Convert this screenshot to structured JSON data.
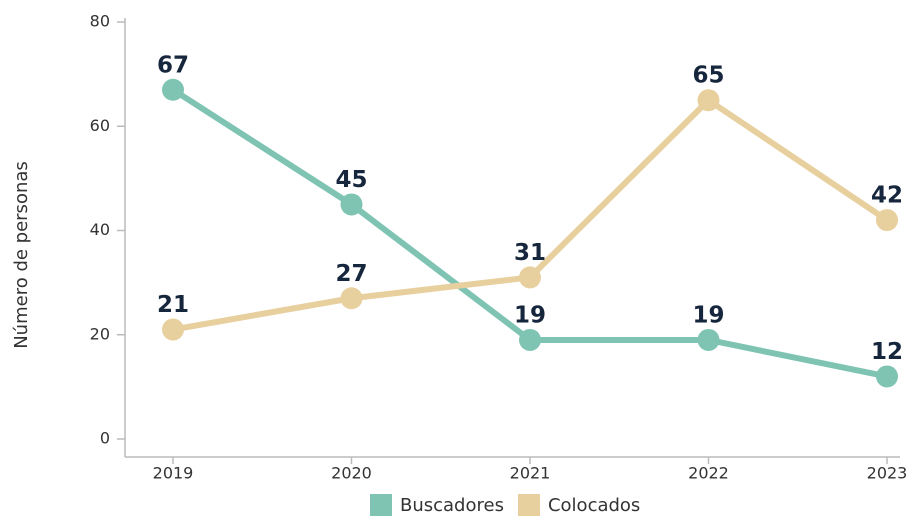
{
  "chart_data": {
    "type": "line",
    "y_label": "Número de personas",
    "categories": [
      "2019",
      "2020",
      "2021",
      "2022",
      "2023"
    ],
    "series": [
      {
        "name": "Buscadores",
        "color": "#7fc4b3",
        "values": [
          67,
          45,
          19,
          19,
          12
        ]
      },
      {
        "name": "Colocados",
        "color": "#e8cf9e",
        "values": [
          21,
          27,
          31,
          65,
          42
        ]
      }
    ],
    "ylim": [
      0,
      80
    ],
    "yticks": [
      0,
      20,
      40,
      60,
      80
    ],
    "grid": false,
    "legend": "bottom"
  }
}
